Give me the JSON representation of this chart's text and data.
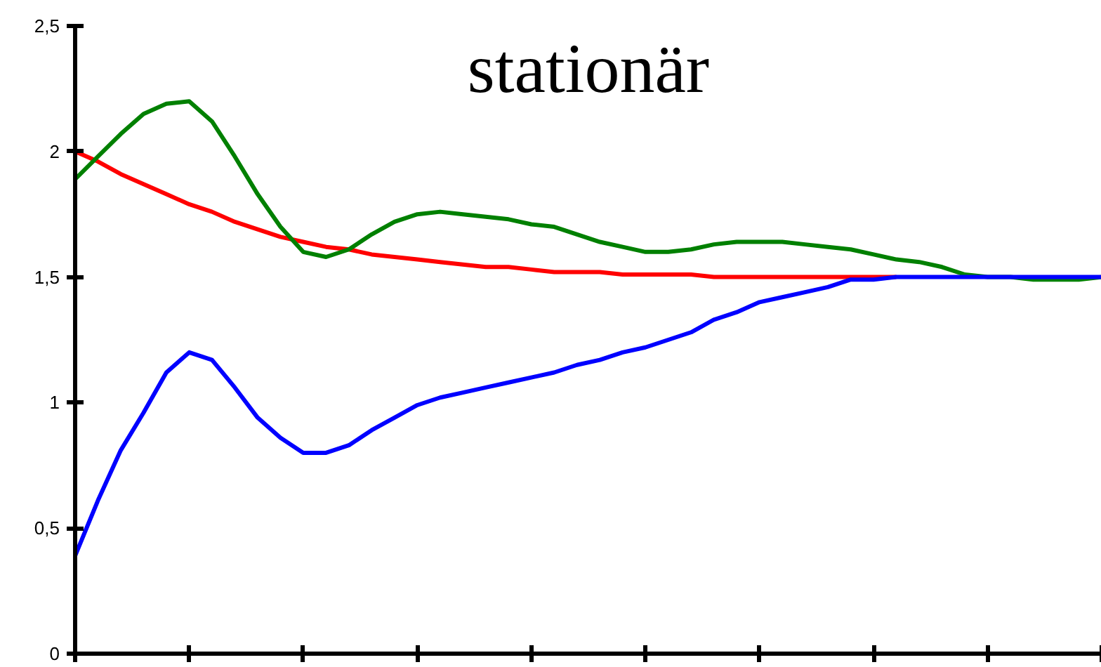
{
  "chart_data": {
    "type": "line",
    "title": "stationär",
    "ylim": [
      0,
      2.5
    ],
    "categories": [
      null,
      null,
      null,
      null,
      null,
      null,
      null,
      null,
      null,
      null,
      null,
      null,
      null,
      null,
      null,
      null,
      null,
      null,
      null,
      null,
      null,
      null,
      null,
      null,
      null,
      null,
      null,
      null,
      null,
      null,
      null,
      null,
      null,
      null,
      null,
      null,
      null,
      null,
      null,
      null,
      null,
      null,
      null,
      null,
      null,
      null
    ],
    "yticks": [
      0,
      {
        "value": 0.5,
        "label": "0,5"
      },
      1,
      {
        "value": 1.5,
        "label": "1,5"
      },
      2,
      {
        "value": 2.5,
        "label": "2,5"
      }
    ],
    "tick_labels": "y",
    "grid": false,
    "series": [
      {
        "color": "#ff0000",
        "values": [
          2.0,
          1.96,
          1.91,
          1.87,
          1.83,
          1.79,
          1.76,
          1.72,
          1.69,
          1.66,
          1.64,
          1.62,
          1.61,
          1.59,
          1.58,
          1.57,
          1.56,
          1.55,
          1.54,
          1.54,
          1.53,
          1.52,
          1.52,
          1.52,
          1.51,
          1.51,
          1.51,
          1.51,
          1.5,
          1.5,
          1.5,
          1.5,
          1.5,
          1.5,
          1.5,
          1.5,
          1.5,
          null,
          null,
          null,
          null,
          null,
          null,
          null,
          null,
          null
        ]
      },
      {
        "color": "#008000",
        "values": [
          1.89,
          1.98,
          2.07,
          2.15,
          2.19,
          2.2,
          2.12,
          1.98,
          1.83,
          1.7,
          1.6,
          1.58,
          1.61,
          1.67,
          1.72,
          1.75,
          1.76,
          1.75,
          1.74,
          1.73,
          1.71,
          1.7,
          1.67,
          1.64,
          1.62,
          1.6,
          1.6,
          1.61,
          1.63,
          1.64,
          1.64,
          1.64,
          1.63,
          1.62,
          1.61,
          1.59,
          1.57,
          1.56,
          1.54,
          1.51,
          1.5,
          1.5,
          1.49,
          1.49,
          1.49,
          1.5
        ]
      },
      {
        "color": "#0000ff",
        "values": [
          0.39,
          0.61,
          0.81,
          0.96,
          1.12,
          1.2,
          1.17,
          1.06,
          0.94,
          0.86,
          0.8,
          0.8,
          0.83,
          0.89,
          0.94,
          0.99,
          1.02,
          1.04,
          1.06,
          1.08,
          1.1,
          1.12,
          1.15,
          1.17,
          1.2,
          1.22,
          1.25,
          1.28,
          1.33,
          1.36,
          1.4,
          1.42,
          1.44,
          1.46,
          1.49,
          1.49,
          1.5,
          1.5,
          1.5,
          1.5,
          1.5,
          1.5,
          1.5,
          1.5,
          1.5,
          1.5
        ]
      }
    ]
  }
}
